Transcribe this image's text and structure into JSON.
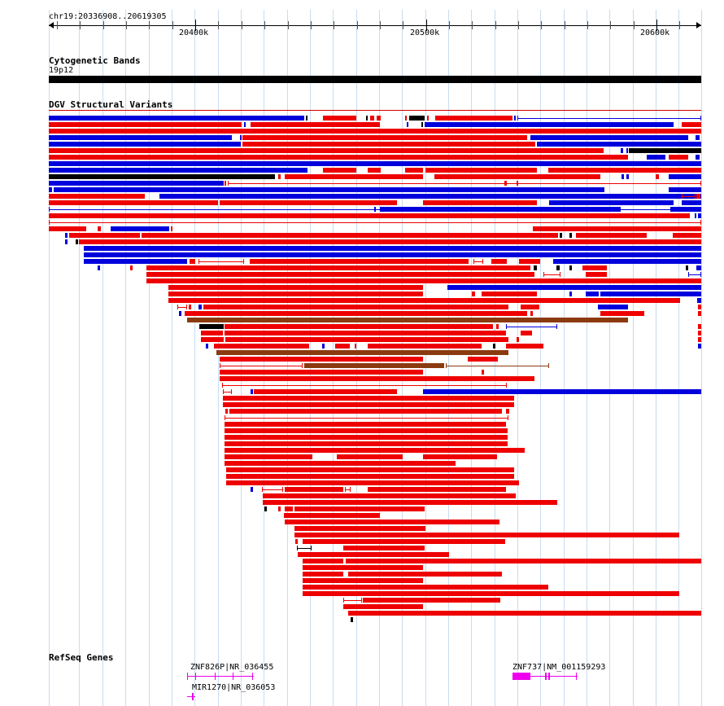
{
  "browser": {
    "location": "chr19:20336908..20619305",
    "ruler_labels": [
      "20400k",
      "20500k",
      "20600k"
    ],
    "tracks": {
      "cytoband": {
        "title": "Cytogenetic Bands",
        "band_label": "19p12"
      },
      "dgv": {
        "title": "DGV Structural Variants"
      },
      "refseq": {
        "title": "RefSeq Genes",
        "genes": [
          "ZNF826P|NR_036455",
          "MIR1270|NR_036053",
          "ZNF737|NM_001159293"
        ]
      }
    },
    "colors": {
      "gain": "#ee0000",
      "loss": "#0000dd",
      "inversion": "#000000",
      "complex": "#8b3a0f",
      "gene": "#ee00ee",
      "band": "#000000"
    }
  }
}
